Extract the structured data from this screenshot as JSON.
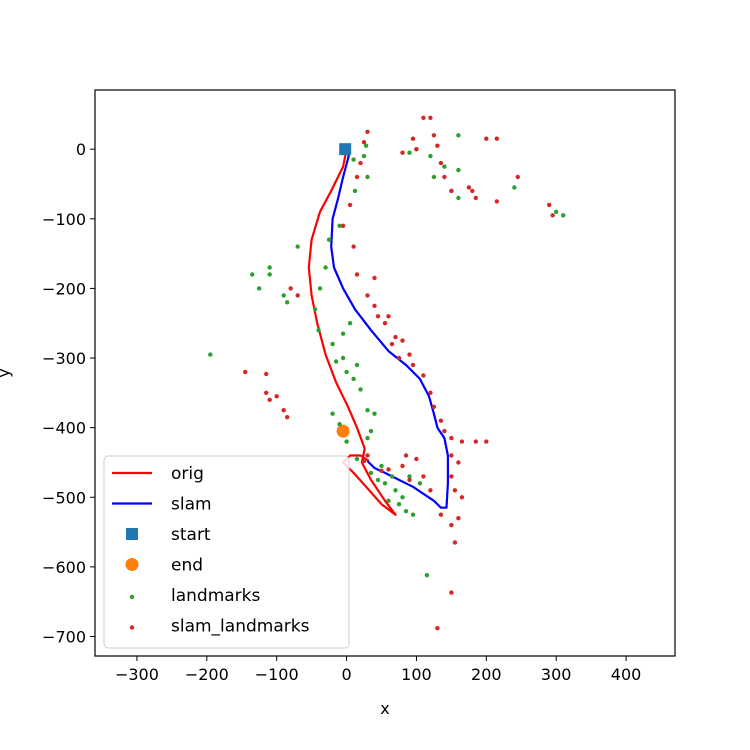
{
  "chart_data": {
    "type": "scatter",
    "title": "",
    "xlabel": "x",
    "ylabel": "y",
    "xlim": [
      -360,
      470
    ],
    "ylim": [
      -728,
      85
    ],
    "xticks": [
      -300,
      -200,
      -100,
      0,
      100,
      200,
      300,
      400
    ],
    "yticks": [
      0,
      -100,
      -200,
      -300,
      -400,
      -500,
      -600,
      -700
    ],
    "xtick_labels": [
      "−300",
      "−200",
      "−100",
      "0",
      "100",
      "200",
      "300",
      "400"
    ],
    "ytick_labels": [
      "0",
      "−100",
      "−200",
      "−300",
      "−400",
      "−500",
      "−600",
      "−700"
    ],
    "grid": false,
    "legend_position": "lower-left",
    "series": [
      {
        "name": "orig",
        "kind": "line",
        "color": "#ff0000",
        "points": [
          [
            0,
            0
          ],
          [
            -5,
            -25
          ],
          [
            -22,
            -60
          ],
          [
            -38,
            -90
          ],
          [
            -50,
            -130
          ],
          [
            -54,
            -170
          ],
          [
            -50,
            -210
          ],
          [
            -42,
            -250
          ],
          [
            -30,
            -295
          ],
          [
            -15,
            -335
          ],
          [
            2,
            -370
          ],
          [
            15,
            -400
          ],
          [
            26,
            -430
          ],
          [
            22,
            -450
          ],
          [
            35,
            -475
          ],
          [
            55,
            -505
          ],
          [
            70,
            -525
          ],
          [
            50,
            -510
          ],
          [
            28,
            -485
          ],
          [
            10,
            -465
          ],
          [
            -5,
            -450
          ],
          [
            5,
            -440
          ],
          [
            20,
            -440
          ],
          [
            32,
            -448
          ]
        ]
      },
      {
        "name": "slam",
        "kind": "line",
        "color": "#0000ff",
        "points": [
          [
            0,
            0
          ],
          [
            3,
            -10
          ],
          [
            -5,
            -40
          ],
          [
            -12,
            -70
          ],
          [
            -20,
            -100
          ],
          [
            -22,
            -140
          ],
          [
            -18,
            -170
          ],
          [
            -5,
            -200
          ],
          [
            12,
            -230
          ],
          [
            35,
            -260
          ],
          [
            60,
            -290
          ],
          [
            85,
            -310
          ],
          [
            105,
            -330
          ],
          [
            118,
            -355
          ],
          [
            125,
            -380
          ],
          [
            130,
            -400
          ],
          [
            140,
            -415
          ],
          [
            145,
            -440
          ],
          [
            145,
            -480
          ],
          [
            143,
            -515
          ],
          [
            135,
            -515
          ],
          [
            125,
            -505
          ],
          [
            110,
            -495
          ],
          [
            95,
            -485
          ],
          [
            75,
            -475
          ],
          [
            55,
            -465
          ],
          [
            40,
            -458
          ],
          [
            30,
            -448
          ]
        ]
      },
      {
        "name": "start",
        "kind": "marker",
        "marker": "square",
        "color": "#1f77b4",
        "points": [
          [
            -2,
            0
          ]
        ]
      },
      {
        "name": "end",
        "kind": "marker",
        "marker": "circle",
        "color": "#ff7f0e",
        "points": [
          [
            -5,
            -405
          ]
        ]
      },
      {
        "name": "landmarks",
        "kind": "scatter",
        "color": "#2ca02c",
        "points": [
          [
            10,
            -15
          ],
          [
            25,
            -10
          ],
          [
            28,
            5
          ],
          [
            30,
            -40
          ],
          [
            12,
            -60
          ],
          [
            -10,
            -110
          ],
          [
            -25,
            -130
          ],
          [
            -30,
            -170
          ],
          [
            -38,
            -200
          ],
          [
            -45,
            -230
          ],
          [
            -40,
            -260
          ],
          [
            -20,
            -280
          ],
          [
            -5,
            -300
          ],
          [
            10,
            -330
          ],
          [
            20,
            -345
          ],
          [
            30,
            -375
          ],
          [
            40,
            -380
          ],
          [
            35,
            -405
          ],
          [
            30,
            -415
          ],
          [
            -20,
            -380
          ],
          [
            -10,
            -395
          ],
          [
            0,
            -420
          ],
          [
            15,
            -445
          ],
          [
            35,
            -465
          ],
          [
            55,
            -480
          ],
          [
            70,
            -490
          ],
          [
            80,
            -500
          ],
          [
            85,
            -520
          ],
          [
            95,
            -525
          ],
          [
            75,
            -510
          ],
          [
            60,
            -505
          ],
          [
            105,
            -480
          ],
          [
            90,
            -470
          ],
          [
            -70,
            -140
          ],
          [
            -110,
            -170
          ],
          [
            -110,
            -180
          ],
          [
            -125,
            -200
          ],
          [
            -135,
            -180
          ],
          [
            -90,
            -210
          ],
          [
            -85,
            -220
          ],
          [
            -195,
            -295
          ],
          [
            115,
            -612
          ],
          [
            90,
            -5
          ],
          [
            100,
            0
          ],
          [
            120,
            -10
          ],
          [
            140,
            -25
          ],
          [
            160,
            -30
          ],
          [
            125,
            -40
          ],
          [
            150,
            -60
          ],
          [
            160,
            -70
          ],
          [
            240,
            -55
          ],
          [
            300,
            -90
          ],
          [
            310,
            -95
          ],
          [
            160,
            20
          ],
          [
            5,
            -250
          ],
          [
            -5,
            -265
          ],
          [
            -15,
            -305
          ],
          [
            0,
            -320
          ],
          [
            15,
            -310
          ],
          [
            50,
            -455
          ],
          [
            65,
            -470
          ],
          [
            45,
            -475
          ]
        ]
      },
      {
        "name": "slam_landmarks",
        "kind": "scatter",
        "color": "#d62728",
        "points": [
          [
            30,
            25
          ],
          [
            25,
            10
          ],
          [
            20,
            -20
          ],
          [
            15,
            -40
          ],
          [
            5,
            -80
          ],
          [
            -5,
            -110
          ],
          [
            10,
            -140
          ],
          [
            15,
            -180
          ],
          [
            40,
            -185
          ],
          [
            30,
            -210
          ],
          [
            40,
            -225
          ],
          [
            60,
            -240
          ],
          [
            70,
            -270
          ],
          [
            80,
            -275
          ],
          [
            90,
            -295
          ],
          [
            95,
            -310
          ],
          [
            110,
            -325
          ],
          [
            120,
            -350
          ],
          [
            125,
            -370
          ],
          [
            135,
            -390
          ],
          [
            140,
            -405
          ],
          [
            150,
            -415
          ],
          [
            165,
            -420
          ],
          [
            185,
            -420
          ],
          [
            200,
            -420
          ],
          [
            150,
            -440
          ],
          [
            160,
            -450
          ],
          [
            150,
            -470
          ],
          [
            155,
            -490
          ],
          [
            165,
            -500
          ],
          [
            160,
            -530
          ],
          [
            150,
            -540
          ],
          [
            155,
            -565
          ],
          [
            135,
            -525
          ],
          [
            80,
            -455
          ],
          [
            85,
            -440
          ],
          [
            100,
            -445
          ],
          [
            110,
            -470
          ],
          [
            120,
            -490
          ],
          [
            90,
            -475
          ],
          [
            60,
            -460
          ],
          [
            50,
            -462
          ],
          [
            25,
            -448
          ],
          [
            30,
            -440
          ],
          [
            80,
            -5
          ],
          [
            95,
            15
          ],
          [
            100,
            0
          ],
          [
            110,
            45
          ],
          [
            120,
            45
          ],
          [
            125,
            20
          ],
          [
            130,
            5
          ],
          [
            135,
            -20
          ],
          [
            140,
            -40
          ],
          [
            150,
            -60
          ],
          [
            175,
            -55
          ],
          [
            180,
            -60
          ],
          [
            185,
            -70
          ],
          [
            200,
            15
          ],
          [
            215,
            15
          ],
          [
            215,
            -75
          ],
          [
            245,
            -40
          ],
          [
            290,
            -80
          ],
          [
            295,
            -95
          ],
          [
            -145,
            -320
          ],
          [
            -115,
            -323
          ],
          [
            -115,
            -350
          ],
          [
            -110,
            -360
          ],
          [
            -100,
            -355
          ],
          [
            -90,
            -375
          ],
          [
            -85,
            -385
          ],
          [
            -80,
            -200
          ],
          [
            -70,
            -210
          ],
          [
            150,
            -637
          ],
          [
            130,
            -688
          ],
          [
            45,
            -240
          ],
          [
            55,
            -250
          ],
          [
            65,
            -280
          ],
          [
            75,
            -300
          ]
        ]
      }
    ]
  }
}
